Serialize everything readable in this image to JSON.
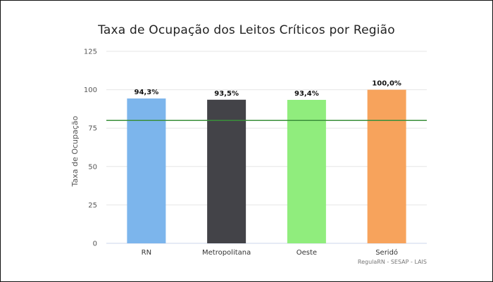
{
  "chart_data": {
    "type": "bar",
    "title": "Taxa de Ocupação dos Leitos Críticos por Região",
    "xlabel": "",
    "ylabel": "Taxa de Ocupação",
    "ylim": [
      0,
      125
    ],
    "yticks": [
      0,
      25,
      50,
      75,
      100,
      125
    ],
    "categories": [
      "RN",
      "Metropolitana",
      "Oeste",
      "Seridó"
    ],
    "values": [
      94.3,
      93.5,
      93.4,
      100.0
    ],
    "data_labels": [
      "94,3%",
      "93,5%",
      "93,4%",
      "100,0%"
    ],
    "colors": [
      "#7cb5ec",
      "#434348",
      "#90ed7d",
      "#f7a35c"
    ],
    "reference_line": {
      "value": 80,
      "color": "#3a8f3a"
    },
    "grid": true,
    "legend": "none",
    "credit": "RegulaRN - SESAP - LAIS"
  }
}
